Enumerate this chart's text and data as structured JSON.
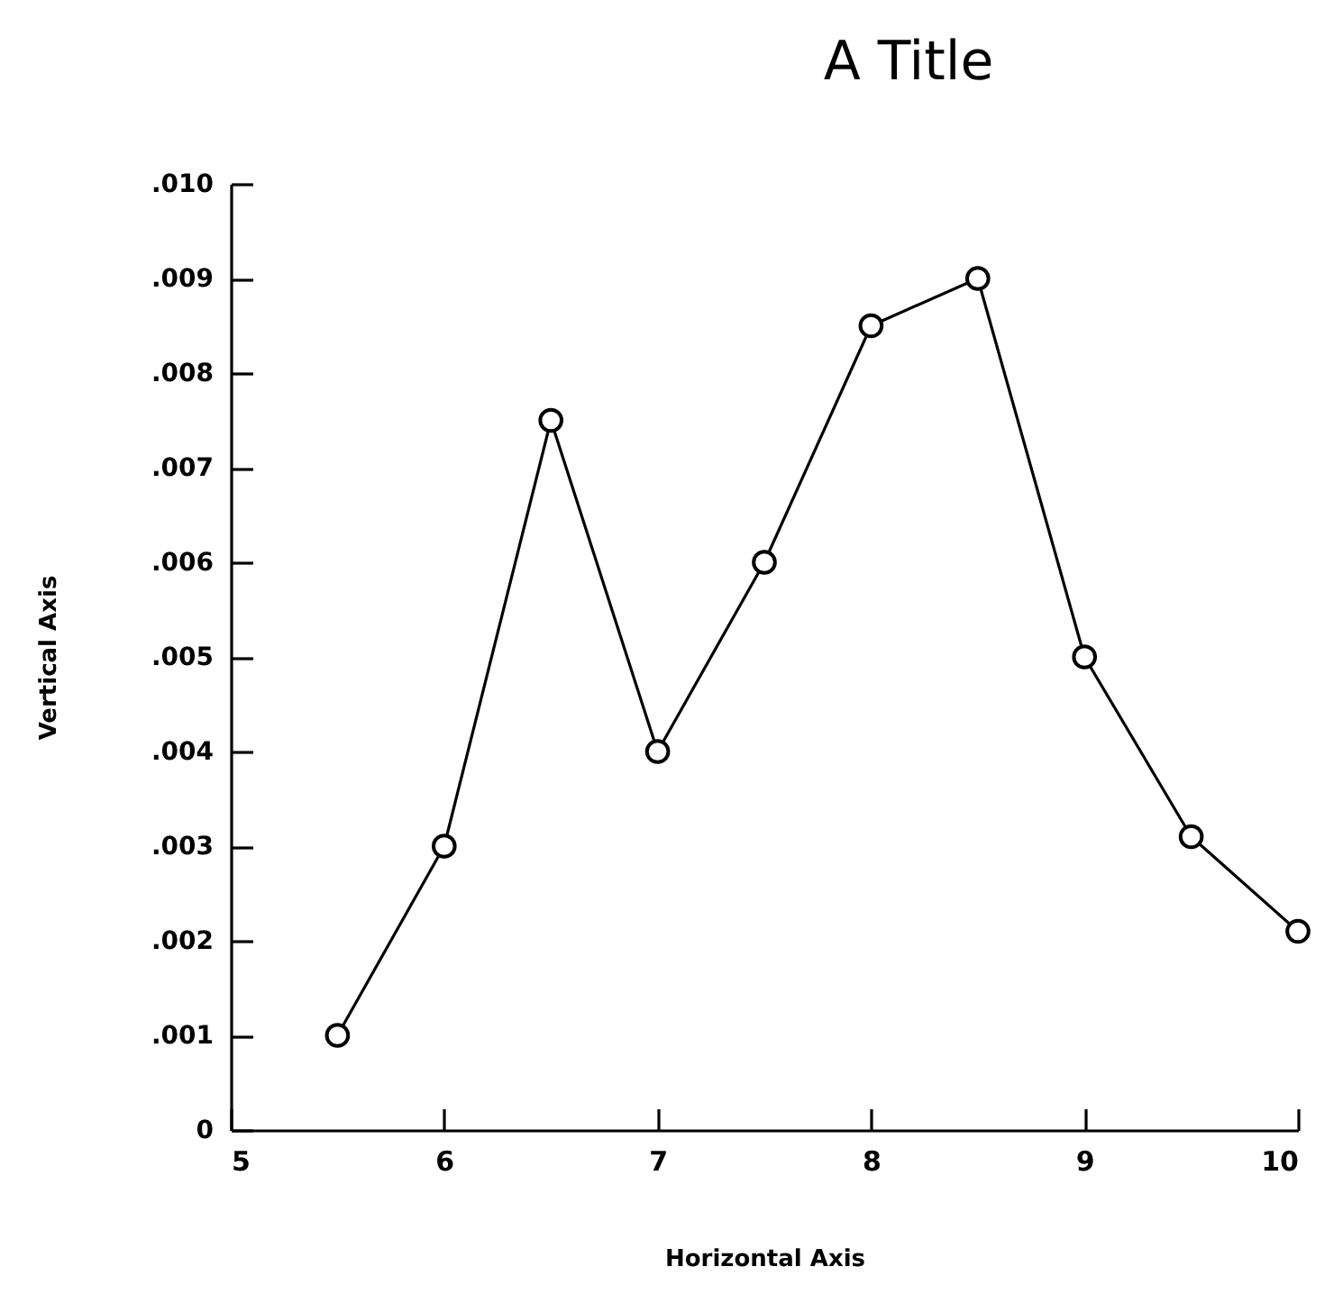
{
  "chart_data": {
    "type": "line",
    "title": "A Title",
    "xlabel": "Horizontal Axis",
    "ylabel": "Vertical Axis",
    "x": [
      5.5,
      6,
      6.5,
      7,
      7.5,
      8,
      8.5,
      9,
      9.5,
      10
    ],
    "series": [
      {
        "color": "#000000",
        "values": [
          0.001,
          0.003,
          0.0075,
          0.004,
          0.006,
          0.0085,
          0.009,
          0.005,
          0.0031,
          0.0021
        ]
      }
    ],
    "xlim": [
      5,
      10
    ],
    "xticks": [
      5,
      6,
      7,
      8,
      9,
      10
    ],
    "ylim": [
      0,
      0.01
    ],
    "yticks": [
      0,
      {
        "value": 0.001,
        "label": ".001"
      },
      {
        "value": 0.002,
        "label": ".002"
      },
      {
        "value": 0.003,
        "label": ".003"
      },
      {
        "value": 0.004,
        "label": ".004"
      },
      {
        "value": 0.005,
        "label": ".005"
      },
      {
        "value": 0.006,
        "label": ".006"
      },
      {
        "value": 0.007,
        "label": ".007"
      },
      {
        "value": 0.008,
        "label": ".008"
      },
      {
        "value": 0.009,
        "label": ".009"
      },
      {
        "value": 0.01,
        "label": ".010"
      }
    ],
    "marker": "circle",
    "line_style": "solid",
    "grid": false
  }
}
